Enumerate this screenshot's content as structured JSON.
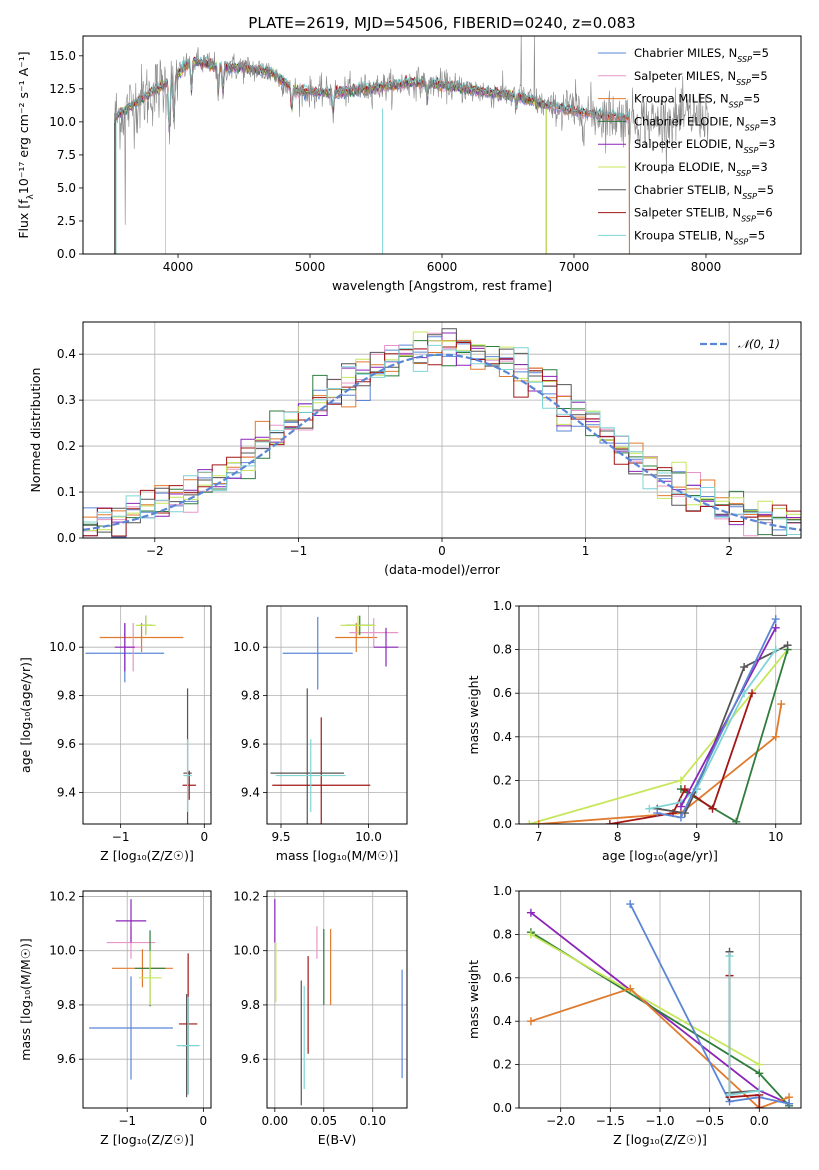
{
  "colors": {
    "Chabrier MILES": "#5b86d6",
    "Salpeter MILES": "#e895c7",
    "Kroupa MILES": "#e07b2e",
    "Chabrier ELODIE": "#2f7d3d",
    "Salpeter ELODIE": "#8b24b8",
    "Kroupa ELODIE": "#c7e65a",
    "Chabrier STELIB": "#555555",
    "Salpeter STELIB": "#a31616",
    "Kroupa STELIB": "#7fd4d6"
  },
  "chart_data": [
    {
      "id": "spectrum",
      "type": "line",
      "title": "PLATE=2619, MJD=54506, FIBERID=0240, z=0.083",
      "xlabel": "wavelength [Angstrom, rest frame]",
      "ylabel": {
        "pre": "Flux [f",
        "sub": "λ",
        "post": "10⁻¹⁷ erg cm⁻² s⁻¹ A⁻¹]"
      },
      "xlim": [
        3280,
        8720
      ],
      "ylim": [
        0,
        16.5
      ],
      "xticks": [
        4000,
        5000,
        6000,
        7000,
        8000
      ],
      "yticks": [
        0.0,
        2.5,
        5.0,
        7.5,
        10.0,
        12.5,
        15.0
      ],
      "data_color": "#888888",
      "data_range": [
        3520,
        8020
      ],
      "continuum": [
        [
          3520,
          10.3
        ],
        [
          3700,
          11.6
        ],
        [
          3900,
          12.8
        ],
        [
          4000,
          13.6
        ],
        [
          4100,
          14.6
        ],
        [
          4300,
          14.2
        ],
        [
          4500,
          14.1
        ],
        [
          4700,
          13.8
        ],
        [
          4900,
          12.3
        ],
        [
          5200,
          12.2
        ],
        [
          5500,
          12.6
        ],
        [
          5800,
          13.0
        ],
        [
          6000,
          12.8
        ],
        [
          6300,
          12.3
        ],
        [
          6600,
          11.9
        ],
        [
          6800,
          11.2
        ],
        [
          7000,
          10.8
        ],
        [
          7300,
          10.4
        ],
        [
          7600,
          10.0
        ],
        [
          7900,
          10.4
        ],
        [
          8020,
          10.6
        ]
      ],
      "legend": {
        "placement": "upper-right",
        "entries": [
          {
            "label": "Chabrier MILES, N",
            "sub": "SSP",
            "n": "=5"
          },
          {
            "label": "Salpeter MILES, N",
            "sub": "SSP",
            "n": "=5"
          },
          {
            "label": "Kroupa MILES, N",
            "sub": "SSP",
            "n": "=5"
          },
          {
            "label": "Chabrier ELODIE, N",
            "sub": "SSP",
            "n": "=3"
          },
          {
            "label": "Salpeter ELODIE, N",
            "sub": "SSP",
            "n": "=3"
          },
          {
            "label": "Kroupa ELODIE, N",
            "sub": "SSP",
            "n": "=3"
          },
          {
            "label": "Chabrier STELIB, N",
            "sub": "SSP",
            "n": "=5"
          },
          {
            "label": "Salpeter STELIB, N",
            "sub": "SSP",
            "n": "=6"
          },
          {
            "label": "Kroupa STELIB, N",
            "sub": "SSP",
            "n": "=5"
          }
        ]
      }
    },
    {
      "id": "residuals",
      "type": "line",
      "xlabel": "(data-model)/error",
      "ylabel": "Normed distribution",
      "xlim": [
        -2.5,
        2.5
      ],
      "ylim": [
        0,
        0.47
      ],
      "xticks": [
        -2,
        -1,
        0,
        1,
        2
      ],
      "yticks": [
        0.0,
        0.1,
        0.2,
        0.3,
        0.4
      ],
      "grid": true,
      "bin_width": 0.1,
      "gaussian_label": "𝒩(0, 1)",
      "gaussian_color": "#5b86d6",
      "legend": {
        "placement": "upper-right"
      }
    },
    {
      "id": "age-vs-Z",
      "type": "scatter",
      "xlabel": "Z [log₁₀(Z/Z☉)]",
      "ylabel": "age  [log₁₀(age/yr)]",
      "xlim": [
        -1.45,
        0.08
      ],
      "ylim": [
        9.27,
        10.17
      ],
      "xticks": [
        -1,
        0
      ],
      "xtick_labels": [
        "−1",
        "0"
      ],
      "yticks": [
        9.4,
        9.6,
        9.8,
        10.0
      ],
      "grid": true,
      "points": [
        {
          "model": "Chabrier MILES",
          "x": -0.95,
          "y": 9.975,
          "xerr": 0.47,
          "yerr": 0.12
        },
        {
          "model": "Kroupa MILES",
          "x": -0.75,
          "y": 10.04,
          "xerr": 0.5,
          "yerr": 0.06
        },
        {
          "model": "Salpeter MILES",
          "x": -0.85,
          "y": 10.0,
          "xerr": 0.1,
          "yerr": 0.1
        },
        {
          "model": "Chabrier ELODIE",
          "x": -0.7,
          "y": 10.09,
          "xerr": 0.08,
          "yerr": 0.04
        },
        {
          "model": "Kroupa ELODIE",
          "x": -0.7,
          "y": 10.09,
          "xerr": 0.12,
          "yerr": 0.04
        },
        {
          "model": "Salpeter ELODIE",
          "x": -0.95,
          "y": 10.0,
          "xerr": 0.12,
          "yerr": 0.1
        },
        {
          "model": "Chabrier STELIB",
          "x": -0.2,
          "y": 9.48,
          "xerr": 0.05,
          "yerr": 0.35
        },
        {
          "model": "Salpeter STELIB",
          "x": -0.18,
          "y": 9.43,
          "xerr": 0.08,
          "yerr": 0.06
        },
        {
          "model": "Kroupa STELIB",
          "x": -0.2,
          "y": 9.47,
          "xerr": 0.05,
          "yerr": 0.15
        }
      ]
    },
    {
      "id": "age-vs-mass",
      "type": "scatter",
      "xlabel": "mass [log₁₀(M/M☉)]",
      "xlim": [
        9.42,
        10.22
      ],
      "ylim": [
        9.27,
        10.17
      ],
      "xticks": [
        9.5,
        10.0
      ],
      "yticks": [
        9.4,
        9.6,
        9.8,
        10.0
      ],
      "grid": true,
      "points": [
        {
          "model": "Chabrier MILES",
          "x": 9.71,
          "y": 9.975,
          "xerr": 0.2,
          "yerr": 0.15
        },
        {
          "model": "Kroupa MILES",
          "x": 9.93,
          "y": 10.04,
          "xerr": 0.12,
          "yerr": 0.06
        },
        {
          "model": "Salpeter MILES",
          "x": 10.03,
          "y": 10.06,
          "xerr": 0.14,
          "yerr": 0.06
        },
        {
          "model": "Chabrier ELODIE",
          "x": 9.95,
          "y": 10.09,
          "xerr": 0.08,
          "yerr": 0.04
        },
        {
          "model": "Kroupa ELODIE",
          "x": 9.94,
          "y": 10.09,
          "xerr": 0.1,
          "yerr": 0.04
        },
        {
          "model": "Salpeter ELODIE",
          "x": 10.1,
          "y": 10.0,
          "xerr": 0.07,
          "yerr": 0.08
        },
        {
          "model": "Chabrier STELIB",
          "x": 9.65,
          "y": 9.48,
          "xerr": 0.21,
          "yerr": 0.35
        },
        {
          "model": "Salpeter STELIB",
          "x": 9.73,
          "y": 9.43,
          "xerr": 0.28,
          "yerr": 0.28
        },
        {
          "model": "Kroupa STELIB",
          "x": 9.67,
          "y": 9.47,
          "xerr": 0.2,
          "yerr": 0.15
        }
      ]
    },
    {
      "id": "massweight-vs-age",
      "type": "line",
      "xlabel": "age  [log₁₀(age/yr)]",
      "ylabel": "mass weight",
      "xlim": [
        6.75,
        10.32
      ],
      "ylim": [
        0,
        1.0
      ],
      "xticks": [
        7,
        8,
        9,
        10
      ],
      "yticks": [
        0.0,
        0.2,
        0.4,
        0.6,
        0.8,
        1.0
      ],
      "grid": true,
      "series": [
        {
          "model": "Kroupa ELODIE",
          "x": [
            6.88,
            8.8,
            10.15
          ],
          "y": [
            0.0,
            0.2,
            0.8
          ]
        },
        {
          "model": "Kroupa MILES",
          "x": [
            7.0,
            8.8,
            10.0,
            10.07
          ],
          "y": [
            0.0,
            0.05,
            0.4,
            0.55
          ]
        },
        {
          "model": "Chabrier ELODIE",
          "x": [
            8.8,
            9.5,
            10.15
          ],
          "y": [
            0.16,
            0.01,
            0.8
          ]
        },
        {
          "model": "Salpeter STELIB",
          "x": [
            7.9,
            8.7,
            8.85,
            9.2,
            9.7
          ],
          "y": [
            0.0,
            0.05,
            0.16,
            0.07,
            0.6
          ]
        },
        {
          "model": "Chabrier STELIB",
          "x": [
            8.5,
            8.85,
            9.0,
            9.6,
            10.15
          ],
          "y": [
            0.07,
            0.05,
            0.16,
            0.72,
            0.82
          ]
        },
        {
          "model": "Kroupa STELIB",
          "x": [
            8.4,
            8.8,
            9.0,
            9.6,
            10.0
          ],
          "y": [
            0.07,
            0.1,
            0.16,
            0.6,
            0.8
          ]
        },
        {
          "model": "Salpeter ELODIE",
          "x": [
            8.8,
            10.0
          ],
          "y": [
            0.08,
            0.9
          ]
        },
        {
          "model": "Chabrier MILES",
          "x": [
            8.5,
            8.8,
            10.0
          ],
          "y": [
            0.05,
            0.03,
            0.94
          ]
        }
      ]
    },
    {
      "id": "mass-vs-Z",
      "type": "scatter",
      "xlabel": "Z [log₁₀(Z/Z☉)]",
      "ylabel": "mass [log₁₀(M/M☉)]",
      "xlim": [
        -1.58,
        0.1
      ],
      "ylim": [
        9.42,
        10.22
      ],
      "xticks": [
        -1,
        0
      ],
      "xtick_labels": [
        "−1",
        "0"
      ],
      "yticks": [
        9.6,
        9.8,
        10.0,
        10.2
      ],
      "grid": true,
      "points": [
        {
          "model": "Chabrier MILES",
          "x": -0.95,
          "y": 9.715,
          "xerr": 0.55,
          "yerr": 0.19
        },
        {
          "model": "Kroupa MILES",
          "x": -0.8,
          "y": 9.935,
          "xerr": 0.4,
          "yerr": 0.07
        },
        {
          "model": "Salpeter MILES",
          "x": -0.95,
          "y": 10.03,
          "xerr": 0.32,
          "yerr": 0.06
        },
        {
          "model": "Chabrier ELODIE",
          "x": -0.7,
          "y": 9.935,
          "xerr": 0.2,
          "yerr": 0.14
        },
        {
          "model": "Kroupa ELODIE",
          "x": -0.7,
          "y": 9.9,
          "xerr": 0.15,
          "yerr": 0.1
        },
        {
          "model": "Salpeter ELODIE",
          "x": -0.95,
          "y": 10.11,
          "xerr": 0.2,
          "yerr": 0.08
        },
        {
          "model": "Chabrier STELIB",
          "x": -0.22,
          "y": 9.65,
          "xerr": 0.05,
          "yerr": 0.19
        },
        {
          "model": "Salpeter STELIB",
          "x": -0.2,
          "y": 9.73,
          "xerr": 0.12,
          "yerr": 0.26
        },
        {
          "model": "Kroupa STELIB",
          "x": -0.2,
          "y": 9.65,
          "xerr": 0.15,
          "yerr": 0.18
        }
      ]
    },
    {
      "id": "mass-vs-EBV",
      "type": "scatter",
      "xlabel": "E(B-V)",
      "xlim": [
        -0.008,
        0.135
      ],
      "ylim": [
        9.42,
        10.22
      ],
      "xticks": [
        0.0,
        0.05,
        0.1
      ],
      "xtick_labels": [
        "0.00",
        "0.05",
        "0.10"
      ],
      "yticks": [
        9.6,
        9.8,
        10.0,
        10.2
      ],
      "grid": true,
      "points": [
        {
          "model": "Salpeter ELODIE",
          "x": 0.0,
          "y": 10.11,
          "xerr": 0.0,
          "yerr": 0.08
        },
        {
          "model": "Kroupa ELODIE",
          "x": 0.001,
          "y": 9.92,
          "xerr": 0.0,
          "yerr": 0.11
        },
        {
          "model": "Chabrier STELIB",
          "x": 0.027,
          "y": 9.66,
          "xerr": 0.0,
          "yerr": 0.23
        },
        {
          "model": "Kroupa STELIB",
          "x": 0.03,
          "y": 9.68,
          "xerr": 0.0,
          "yerr": 0.19
        },
        {
          "model": "Salpeter STELIB",
          "x": 0.034,
          "y": 9.8,
          "xerr": 0.0,
          "yerr": 0.18
        },
        {
          "model": "Salpeter MILES",
          "x": 0.043,
          "y": 10.03,
          "xerr": 0.0,
          "yerr": 0.06
        },
        {
          "model": "Chabrier ELODIE",
          "x": 0.05,
          "y": 9.94,
          "xerr": 0.0,
          "yerr": 0.14
        },
        {
          "model": "Kroupa MILES",
          "x": 0.057,
          "y": 9.94,
          "xerr": 0.0,
          "yerr": 0.14
        },
        {
          "model": "Chabrier MILES",
          "x": 0.13,
          "y": 9.73,
          "xerr": 0.0,
          "yerr": 0.2
        }
      ]
    },
    {
      "id": "massweight-vs-Z",
      "type": "line",
      "xlabel": "Z [log₁₀(Z/Z☉)]",
      "ylabel": "mass weight",
      "xlim": [
        -2.42,
        0.42
      ],
      "ylim": [
        0,
        1.0
      ],
      "xticks": [
        -2.0,
        -1.5,
        -1.0,
        -0.5,
        0.0
      ],
      "xtick_labels": [
        "−2.0",
        "−1.5",
        "−1.0",
        "−0.5",
        "0.0"
      ],
      "yticks": [
        0.0,
        0.2,
        0.4,
        0.6,
        0.8,
        1.0
      ],
      "grid": true,
      "series": [
        {
          "model": "Salpeter ELODIE",
          "x": [
            -2.3,
            0.0,
            0.3
          ],
          "y": [
            0.9,
            0.08,
            0.02
          ]
        },
        {
          "model": "Chabrier ELODIE",
          "x": [
            -2.3,
            0.0,
            0.3
          ],
          "y": [
            0.81,
            0.16,
            0.01
          ]
        },
        {
          "model": "Kroupa ELODIE",
          "x": [
            -2.3,
            0.0
          ],
          "y": [
            0.8,
            0.2
          ]
        },
        {
          "model": "Kroupa MILES",
          "x": [
            -2.3,
            -1.3,
            0.0,
            0.3
          ],
          "y": [
            0.4,
            0.55,
            0.0,
            0.05
          ]
        },
        {
          "model": "Chabrier MILES",
          "x": [
            -1.3,
            -0.3,
            0.0,
            0.3
          ],
          "y": [
            0.94,
            0.03,
            0.05,
            0.02
          ]
        },
        {
          "model": "Chabrier STELIB",
          "x": [
            -0.3,
            -0.3,
            0.0
          ],
          "y": [
            0.72,
            0.07,
            0.08
          ]
        },
        {
          "model": "Salpeter STELIB",
          "x": [
            -0.3,
            -0.3,
            0.0,
            0.0
          ],
          "y": [
            0.61,
            0.05,
            0.06,
            0.0
          ]
        },
        {
          "model": "Kroupa STELIB",
          "x": [
            -0.3,
            -0.3,
            0.0
          ],
          "y": [
            0.7,
            0.06,
            0.08
          ]
        }
      ]
    }
  ]
}
